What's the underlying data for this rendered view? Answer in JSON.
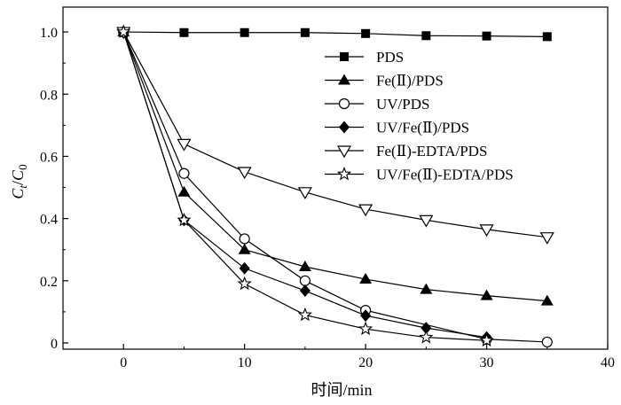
{
  "chart_data": {
    "type": "line",
    "xlabel": "时间/min",
    "ylabel": "Ct/C0",
    "ylabel_parts": [
      "C",
      "t",
      "/",
      "C",
      "0"
    ],
    "xlim": [
      -5,
      40
    ],
    "ylim": [
      -0.02,
      1.08
    ],
    "xticks": [
      0,
      10,
      20,
      30,
      40
    ],
    "yticks": [
      0,
      0.2,
      0.4,
      0.6,
      0.8,
      1.0
    ],
    "xtick_labels": [
      "0",
      "10",
      "20",
      "30",
      "40"
    ],
    "ytick_labels": [
      "0",
      "0.2",
      "0.4",
      "0.6",
      "0.8",
      "1.0"
    ],
    "grid": false,
    "legend_position": "top-right",
    "series": [
      {
        "name": "PDS",
        "marker": "square-filled",
        "x": [
          0,
          5,
          10,
          15,
          20,
          25,
          30,
          35
        ],
        "y": [
          1.0,
          0.998,
          0.998,
          0.998,
          0.995,
          0.988,
          0.987,
          0.985
        ]
      },
      {
        "name": "Fe(Ⅱ)/PDS",
        "marker": "triangle-up-filled",
        "x": [
          0,
          5,
          10,
          15,
          20,
          25,
          30,
          35
        ],
        "y": [
          1.0,
          0.485,
          0.3,
          0.245,
          0.205,
          0.172,
          0.152,
          0.135
        ]
      },
      {
        "name": "UV/PDS",
        "marker": "circle-open",
        "x": [
          0,
          5,
          10,
          15,
          20,
          30,
          35
        ],
        "y": [
          1.0,
          0.545,
          0.335,
          0.2,
          0.105,
          0.012,
          0.003
        ]
      },
      {
        "name": "UV/Fe(Ⅱ)/PDS",
        "marker": "diamond-filled",
        "x": [
          0,
          5,
          10,
          15,
          20,
          25,
          30
        ],
        "y": [
          1.0,
          0.395,
          0.24,
          0.168,
          0.088,
          0.048,
          0.018
        ]
      },
      {
        "name": "Fe(Ⅱ)-EDTA/PDS",
        "marker": "triangle-down-open",
        "x": [
          0,
          5,
          10,
          15,
          20,
          25,
          30,
          35
        ],
        "y": [
          1.0,
          0.64,
          0.55,
          0.485,
          0.43,
          0.395,
          0.365,
          0.34
        ]
      },
      {
        "name": "UV/Fe(Ⅱ)-EDTA/PDS",
        "marker": "star-open",
        "x": [
          0,
          5,
          10,
          15,
          20,
          25,
          30
        ],
        "y": [
          1.0,
          0.395,
          0.19,
          0.09,
          0.045,
          0.018,
          0.008
        ]
      }
    ]
  }
}
